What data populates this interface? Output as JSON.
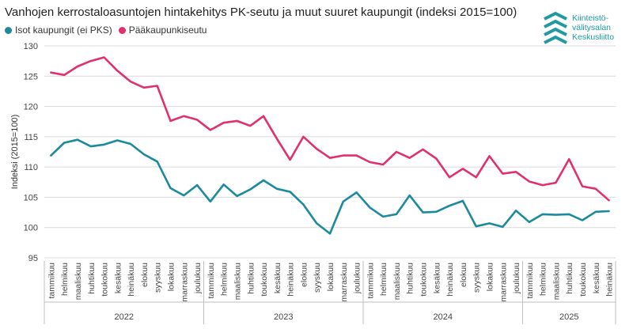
{
  "title": "Vanhojen kerrostaloasuntojen hintakehitys PK-seutu ja muut suuret kaupungit (indeksi 2015=100)",
  "logo": {
    "lines": [
      "Kiinteistö-",
      "välitysalan",
      "Keskusliitto"
    ],
    "icon": "chevrons-logo-icon",
    "color": "#1f9aa1"
  },
  "colors": {
    "isot": "#1a8a9c",
    "paakaupunki": "#e0306e",
    "grid": "#d9d9d9",
    "axis": "#555555"
  },
  "chart_data": {
    "type": "line",
    "title": "Vanhojen kerrostaloasuntojen hintakehitys PK-seutu ja muut suuret kaupungit (indeksi 2015=100)",
    "ylabel": "Indeksi (2015=100)",
    "xlabel": "",
    "ylim": [
      95,
      130
    ],
    "yticks": [
      95,
      100,
      105,
      110,
      115,
      120,
      125,
      130
    ],
    "grid": true,
    "legend": "top-left",
    "years": [
      {
        "label": "2022",
        "count": 12
      },
      {
        "label": "2023",
        "count": 12
      },
      {
        "label": "2024",
        "count": 12
      },
      {
        "label": "2025",
        "count": 7
      }
    ],
    "categories": [
      "tammikuu",
      "helmikuu",
      "maaliskuu",
      "huhtikuu",
      "toukokuu",
      "kesäkuu",
      "heinäkuu",
      "elokuu",
      "syyskuu",
      "lokakuu",
      "marraskuu",
      "joulukuu",
      "tammikuu",
      "helmikuu",
      "maaliskuu",
      "huhtikuu",
      "toukokuu",
      "kesäkuu",
      "heinäkuu",
      "elokuu",
      "syyskuu",
      "lokakuu",
      "marraskuu",
      "joulukuu",
      "tammikuu",
      "helmikuu",
      "maaliskuu",
      "huhtikuu",
      "toukokuu",
      "kesäkuu",
      "heinäkuu",
      "elokuu",
      "syyskuu",
      "lokakuu",
      "marraskuu",
      "joulukuu",
      "tammikuu",
      "helmikuu",
      "maaliskuu",
      "huhtikuu",
      "toukokuu",
      "kesäkuu",
      "heinäkuu"
    ],
    "series": [
      {
        "name": "Isot kaupungit (ei PKS)",
        "color": "#1a8a9c",
        "values": [
          111.9,
          114.0,
          114.5,
          113.4,
          113.7,
          114.4,
          113.8,
          112.1,
          110.9,
          106.5,
          105.3,
          107.0,
          104.3,
          107.1,
          105.2,
          106.3,
          107.8,
          106.4,
          105.9,
          103.8,
          100.7,
          99.0,
          104.3,
          105.8,
          103.3,
          101.8,
          102.2,
          105.3,
          102.5,
          102.6,
          103.6,
          104.4,
          100.2,
          100.7,
          100.1,
          102.8,
          100.9,
          102.2,
          102.1,
          102.2,
          101.2,
          102.6,
          102.7
        ]
      },
      {
        "name": "Pääkaupunkiseutu",
        "color": "#e0306e",
        "values": [
          125.6,
          125.2,
          126.6,
          127.5,
          128.1,
          125.9,
          124.1,
          123.1,
          123.4,
          117.6,
          118.4,
          117.8,
          116.1,
          117.3,
          117.6,
          116.8,
          118.4,
          114.7,
          111.2,
          115.0,
          113.0,
          111.5,
          111.9,
          111.9,
          110.8,
          110.4,
          112.5,
          111.5,
          112.9,
          111.4,
          108.3,
          109.7,
          108.3,
          111.8,
          108.9,
          109.2,
          107.6,
          107.0,
          107.4,
          111.3,
          106.8,
          106.4,
          104.5
        ]
      }
    ]
  }
}
